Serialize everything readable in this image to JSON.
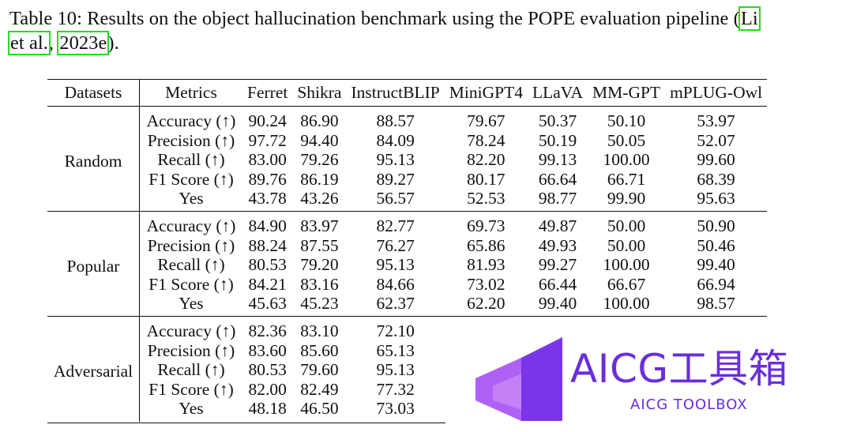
{
  "caption": {
    "text_before": "Table 10: Results on the object hallucination benchmark using the POPE evaluation pipeline (",
    "cite_part1": "Li",
    "cite_part2": "et al.",
    "cite_sep": ", ",
    "cite_year": "2023e",
    "text_after": ")."
  },
  "table": {
    "headers": [
      "Datasets",
      "Metrics",
      "Ferret",
      "Shikra",
      "InstructBLIP",
      "MiniGPT4",
      "LLaVA",
      "MM-GPT",
      "mPLUG-Owl"
    ],
    "groups": [
      {
        "dataset": "Random",
        "rows": [
          {
            "metric": "Accuracy (↑)",
            "values": [
              "90.24",
              "86.90",
              "88.57",
              "79.67",
              "50.37",
              "50.10",
              "53.97"
            ],
            "bold_index": 0
          },
          {
            "metric": "Precision (↑)",
            "values": [
              "97.72",
              "94.40",
              "84.09",
              "78.24",
              "50.19",
              "50.05",
              "52.07"
            ]
          },
          {
            "metric": "Recall (↑)",
            "values": [
              "83.00",
              "79.26",
              "95.13",
              "82.20",
              "99.13",
              "100.00",
              "99.60"
            ]
          },
          {
            "metric": "F1 Score (↑)",
            "values": [
              "89.76",
              "86.19",
              "89.27",
              "80.17",
              "66.64",
              "66.71",
              "68.39"
            ]
          },
          {
            "metric": "Yes",
            "values": [
              "43.78",
              "43.26",
              "56.57",
              "52.53",
              "98.77",
              "99.90",
              "95.63"
            ]
          }
        ]
      },
      {
        "dataset": "Popular",
        "rows": [
          {
            "metric": "Accuracy (↑)",
            "values": [
              "84.90",
              "83.97",
              "82.77",
              "69.73",
              "49.87",
              "50.00",
              "50.90"
            ],
            "bold_index": 0
          },
          {
            "metric": "Precision (↑)",
            "values": [
              "88.24",
              "87.55",
              "76.27",
              "65.86",
              "49.93",
              "50.00",
              "50.46"
            ]
          },
          {
            "metric": "Recall (↑)",
            "values": [
              "80.53",
              "79.20",
              "95.13",
              "81.93",
              "99.27",
              "100.00",
              "99.40"
            ]
          },
          {
            "metric": "F1 Score (↑)",
            "values": [
              "84.21",
              "83.16",
              "84.66",
              "73.02",
              "66.44",
              "66.67",
              "66.94"
            ]
          },
          {
            "metric": "Yes",
            "values": [
              "45.63",
              "45.23",
              "62.37",
              "62.20",
              "99.40",
              "100.00",
              "98.57"
            ]
          }
        ]
      },
      {
        "dataset": "Adversarial",
        "rows": [
          {
            "metric": "Accuracy (↑)",
            "values": [
              "82.36",
              "83.10",
              "72.10",
              "",
              "",
              "",
              ""
            ],
            "bold_index": 1
          },
          {
            "metric": "Precision (↑)",
            "values": [
              "83.60",
              "85.60",
              "65.13",
              "",
              "",
              "",
              ""
            ]
          },
          {
            "metric": "Recall (↑)",
            "values": [
              "80.53",
              "79.60",
              "95.13",
              "",
              "",
              "",
              ""
            ]
          },
          {
            "metric": "F1 Score (↑)",
            "values": [
              "82.00",
              "82.49",
              "77.32",
              "",
              "",
              "",
              ""
            ]
          },
          {
            "metric": "Yes",
            "values": [
              "48.18",
              "46.50",
              "73.03",
              "",
              "",
              "",
              ""
            ]
          }
        ]
      }
    ]
  },
  "watermark": {
    "title": "AICG工具箱",
    "subtitle": "AICG TOOLBOX",
    "color": "#6a2fd8",
    "icon": "aicg-logo-icon"
  },
  "colors": {
    "citation_box": "#22dd22",
    "text": "#111111"
  }
}
